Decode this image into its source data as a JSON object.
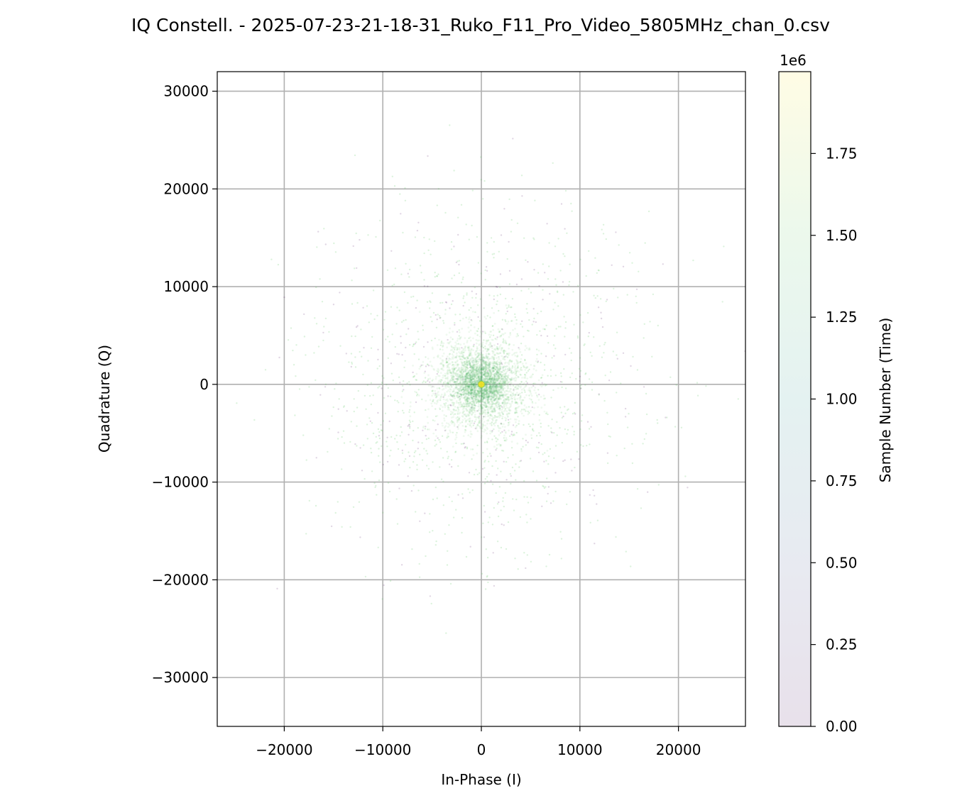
{
  "chart_data": {
    "type": "scatter",
    "title": "IQ Constell. - 2025-07-23-21-18-31_Ruko_F11_Pro_Video_5805MHz_chan_0.csv",
    "xlabel": "In-Phase (I)",
    "ylabel": "Quadrature (Q)",
    "xlim": [
      -26800,
      26800
    ],
    "ylim": [
      -35000,
      32000
    ],
    "xticks": [
      -20000,
      -10000,
      0,
      10000,
      20000
    ],
    "xtick_labels": [
      "−20000",
      "−10000",
      "0",
      "10000",
      "20000"
    ],
    "yticks": [
      -30000,
      -20000,
      -10000,
      0,
      10000,
      20000,
      30000
    ],
    "ytick_labels": [
      "−30000",
      "−20000",
      "−10000",
      "0",
      "10000",
      "20000",
      "30000"
    ],
    "grid": true,
    "center_marker": {
      "x": 0,
      "y": 0
    },
    "point_distribution": "approximately Gaussian, centered at (0,0), dense core within about ±3000, sparse halo out to about ±25000",
    "colorbar": {
      "label": "Sample Number (Time)",
      "offset_label": "1e6",
      "min": 0,
      "max": 2.0,
      "ticks": [
        0.0,
        0.25,
        0.5,
        0.75,
        1.0,
        1.25,
        1.5,
        1.75
      ],
      "tick_labels": [
        "0.00",
        "0.25",
        "0.50",
        "0.75",
        "1.00",
        "1.25",
        "1.50",
        "1.75"
      ],
      "colormap": "viridis (drawn with low alpha)"
    },
    "colors": {
      "viridis_start": "#440154",
      "viridis_mid": "#21918c",
      "viridis_green": "#5ec962",
      "viridis_end": "#fde725",
      "grid": "#b0b0b0",
      "center": "#f2e11f"
    }
  }
}
